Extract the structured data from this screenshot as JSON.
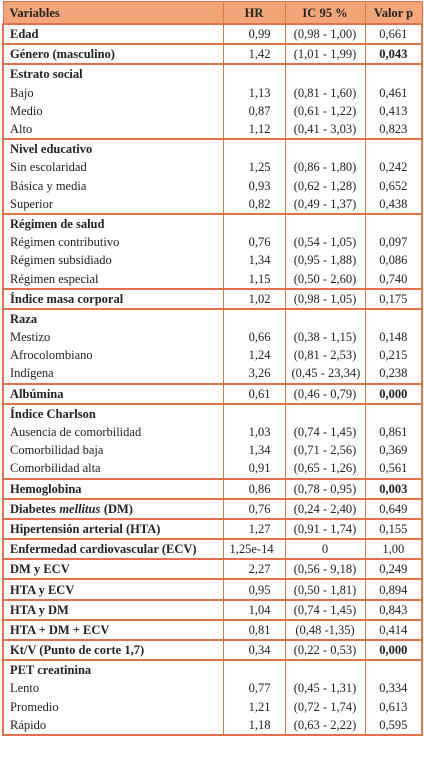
{
  "table": {
    "header": [
      "Variables",
      "HR",
      "IC 95 %",
      "Valor p"
    ],
    "sections": [
      {
        "rows": [
          {
            "label": "Edad",
            "bold": true,
            "hr": "0,99",
            "ic": "(0,98 - 1,00)",
            "p": "0,661"
          }
        ]
      },
      {
        "rows": [
          {
            "label": "Género (masculino)",
            "bold": true,
            "hr": "1,42",
            "ic": "(1,01 - 1,99)",
            "p": "0,043",
            "p_bold": true
          }
        ]
      },
      {
        "rows": [
          {
            "label": "Estrato social",
            "bold": true
          },
          {
            "label": "Bajo",
            "hr": "1,13",
            "ic": "(0,81 - 1,60)",
            "p": "0,461"
          },
          {
            "label": "Medio",
            "hr": "0,87",
            "ic": "(0,61 - 1,22)",
            "p": "0,413"
          },
          {
            "label": "Alto",
            "hr": "1,12",
            "ic": "(0,41 - 3,03)",
            "p": "0,823"
          }
        ]
      },
      {
        "rows": [
          {
            "label": "Nivel educativo",
            "bold": true
          },
          {
            "label": "Sin escolaridad",
            "hr": "1,25",
            "ic": "(0,86 - 1,80)",
            "p": "0,242"
          },
          {
            "label": "Básica y media",
            "hr": "0,93",
            "ic": "(0,62 - 1,28)",
            "p": "0,652"
          },
          {
            "label": "Superior",
            "hr": "0,82",
            "ic": "(0,49 - 1,37)",
            "p": "0,438"
          }
        ]
      },
      {
        "rows": [
          {
            "label": "Régimen de salud",
            "bold": true
          },
          {
            "label": "Régimen contributivo",
            "hr": "0,76",
            "ic": "(0,54 - 1,05)",
            "p": "0,097"
          },
          {
            "label": "Régimen subsidiado",
            "hr": "1,34",
            "ic": "(0,95 - 1,88)",
            "p": "0,086"
          },
          {
            "label": "Régimen especial",
            "hr": "1,15",
            "ic": "(0,50 - 2,60)",
            "p": "0,740"
          }
        ]
      },
      {
        "rows": [
          {
            "label": "Índice masa corporal",
            "bold": true,
            "hr": "1,02",
            "ic": "(0,98 - 1,05)",
            "p": "0,175"
          }
        ]
      },
      {
        "rows": [
          {
            "label": "Raza",
            "bold": true
          },
          {
            "label": "Mestizo",
            "hr": "0,66",
            "ic": "(0,38 - 1,15)",
            "p": "0,148"
          },
          {
            "label": "Afrocolombiano",
            "hr": "1,24",
            "ic": "(0,81 - 2,53)",
            "p": "0,215"
          },
          {
            "label": "Indígena",
            "hr": "3,26",
            "ic": "(0,45 - 23,34)",
            "p": "0,238"
          }
        ]
      },
      {
        "rows": [
          {
            "label": "Albúmina",
            "bold": true,
            "hr": "0,61",
            "ic": "(0,46 - 0,79)",
            "p": "0,000",
            "p_bold": true
          }
        ]
      },
      {
        "rows": [
          {
            "label": "Índice Charlson",
            "bold": true
          },
          {
            "label": "Ausencia de comorbilidad",
            "hr": "1,03",
            "ic": "(0,74 - 1,45)",
            "p": "0,861"
          },
          {
            "label": "Comorbilidad baja",
            "hr": "1,34",
            "ic": "(0,71 - 2,56)",
            "p": "0,369"
          },
          {
            "label": "Comorbilidad alta",
            "hr": "0,91",
            "ic": "(0,65 - 1,26)",
            "p": "0,561"
          }
        ]
      },
      {
        "rows": [
          {
            "label": "Hemoglobina",
            "bold": true,
            "hr": "0,86",
            "ic": "(0,78 - 0,95)",
            "p": "0,003",
            "p_bold": true
          }
        ]
      },
      {
        "rows": [
          {
            "label_parts": [
              "Diabetes",
              "mellitus",
              "(DM)"
            ],
            "italic_part": 1,
            "bold": true,
            "hr": "0,76",
            "ic": "(0,24 - 2,40)",
            "p": "0,649"
          }
        ]
      },
      {
        "rows": [
          {
            "label": "Hipertensión arterial (HTA)",
            "bold": true,
            "hr": "1,27",
            "ic": "(0,91 - 1,74)",
            "p": "0,155"
          }
        ]
      },
      {
        "rows": [
          {
            "label": "Enfermedad cardiovascular (ECV)",
            "bold": true,
            "hr": "1,25e-14",
            "ic": "0",
            "p": "1,00"
          }
        ]
      },
      {
        "rows": [
          {
            "label": "DM y ECV",
            "bold": true,
            "hr": "2,27",
            "ic": "(0,56 - 9,18)",
            "p": "0,249"
          }
        ]
      },
      {
        "rows": [
          {
            "label": "HTA y ECV",
            "bold": true,
            "hr": "0,95",
            "ic": "(0,50 - 1,81)",
            "p": "0,894"
          }
        ]
      },
      {
        "rows": [
          {
            "label": "HTA y DM",
            "bold": true,
            "hr": "1,04",
            "ic": "(0,74 - 1,45)",
            "p": "0,843"
          }
        ]
      },
      {
        "rows": [
          {
            "label": "HTA + DM + ECV",
            "bold": true,
            "hr": "0,81",
            "ic": "(0,48 -1,35)",
            "p": "0,414"
          }
        ]
      },
      {
        "rows": [
          {
            "label": "Kt/V (Punto de corte 1,7)",
            "bold": true,
            "hr": "0,34",
            "ic": "(0,22 - 0,53)",
            "p": "0,000",
            "p_bold": true
          }
        ]
      },
      {
        "rows": [
          {
            "label": "PET creatinina",
            "bold": true
          },
          {
            "label": "Lento",
            "hr": "0,77",
            "ic": "(0,45 - 1,31)",
            "p": "0,334"
          },
          {
            "label": "Promedio",
            "hr": "1,21",
            "ic": "(0,72 - 1,74)",
            "p": "0,613"
          },
          {
            "label": "Rápido",
            "hr": "1,18",
            "ic": "(0,63 - 2,22)",
            "p": "0,595"
          }
        ]
      }
    ]
  }
}
